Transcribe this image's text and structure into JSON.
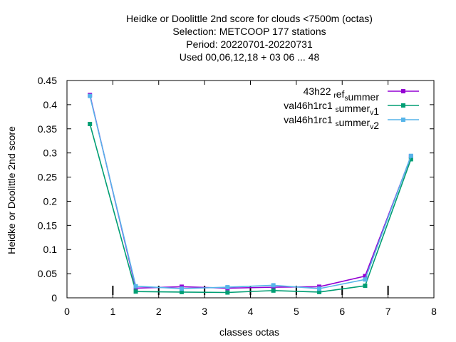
{
  "chart_data": {
    "type": "line",
    "title_lines": [
      "Heidke or Doolittle 2nd score  for clouds <7500m (octas)",
      "Selection: METCOOP    177 stations",
      "Period: 20220701-20220731",
      "Used  00,06,12,18  + 03 06 ... 48"
    ],
    "xlabel": "classes octas",
    "ylabel": "Heidke or Doolittle 2nd score",
    "xlim": [
      0,
      8
    ],
    "ylim": [
      0,
      0.45
    ],
    "xticks": [
      "0",
      "1",
      "2",
      "3",
      "4",
      "5",
      "6",
      "7",
      "8"
    ],
    "yticks": [
      "0",
      "0.05",
      "0.1",
      "0.15",
      "0.2",
      "0.25",
      "0.3",
      "0.35",
      "0.4",
      "0.45"
    ],
    "legend_position": "top-right",
    "series": [
      {
        "name": "43h22",
        "name_sub1": "r",
        "name_mid": "ef",
        "name_sub2": "s",
        "name_tail": "ummer",
        "color": "#9400d3",
        "x": [
          0.5,
          1.5,
          2.5,
          3.5,
          4.5,
          5.5,
          6.5,
          7.5
        ],
        "values": [
          0.42,
          0.02,
          0.023,
          0.02,
          0.022,
          0.023,
          0.045,
          0.293
        ]
      },
      {
        "name": "val46h1rc1",
        "name_sub1": "s",
        "name_mid": "ummer",
        "name_sub2": "v",
        "name_tail": "1",
        "color": "#009e73",
        "x": [
          0.5,
          1.5,
          2.5,
          3.5,
          4.5,
          5.5,
          6.5,
          7.5
        ],
        "values": [
          0.36,
          0.013,
          0.012,
          0.011,
          0.015,
          0.012,
          0.025,
          0.287
        ]
      },
      {
        "name": "val46h1rc1",
        "name_sub1": "s",
        "name_mid": "ummer",
        "name_sub2": "v",
        "name_tail": "2",
        "color": "#56b4e9",
        "x": [
          0.5,
          1.5,
          2.5,
          3.5,
          4.5,
          5.5,
          6.5,
          7.5
        ],
        "values": [
          0.418,
          0.024,
          0.019,
          0.022,
          0.026,
          0.019,
          0.038,
          0.294
        ]
      }
    ]
  }
}
